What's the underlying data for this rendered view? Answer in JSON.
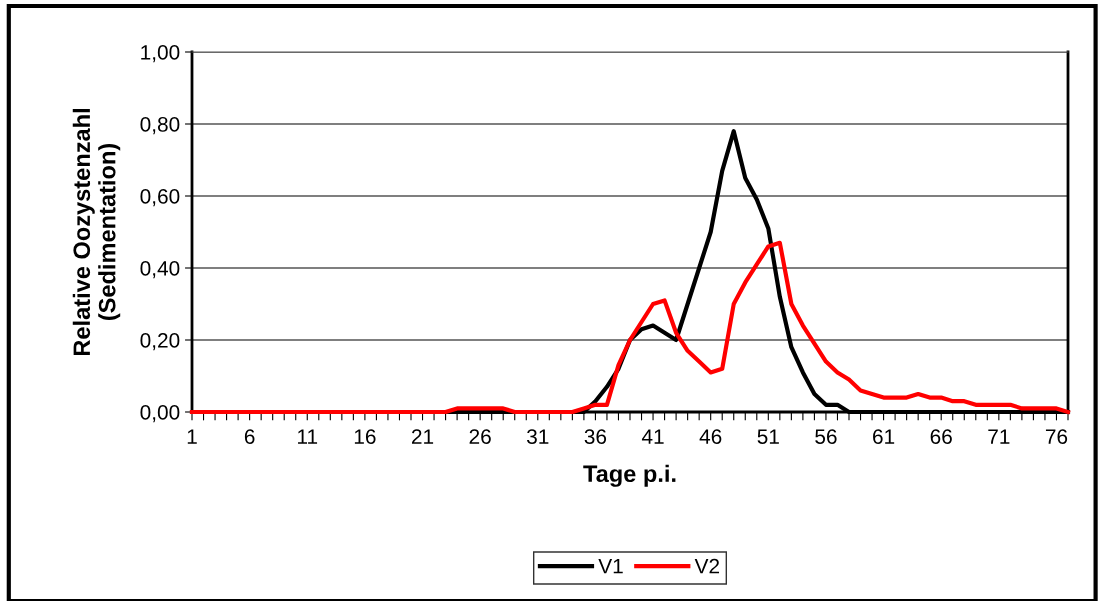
{
  "chart_data": {
    "type": "line",
    "xlabel": "Tage p.i.",
    "ylabel": "Relative Oozystenzahl\n(Sedimentation)",
    "categories": [
      "1",
      null,
      null,
      null,
      null,
      "6",
      null,
      null,
      null,
      null,
      "11",
      null,
      null,
      null,
      null,
      "16",
      null,
      null,
      null,
      null,
      "21",
      null,
      null,
      null,
      null,
      "26",
      null,
      null,
      null,
      null,
      "31",
      null,
      null,
      null,
      null,
      "36",
      null,
      null,
      null,
      null,
      "41",
      null,
      null,
      null,
      null,
      "46",
      null,
      null,
      null,
      null,
      "51",
      null,
      null,
      null,
      null,
      "56",
      null,
      null,
      null,
      null,
      "61",
      null,
      null,
      null,
      null,
      "66",
      null,
      null,
      null,
      null,
      "71",
      null,
      null,
      null,
      null,
      "76",
      null
    ],
    "series": [
      {
        "name": "V1",
        "color": "#000000",
        "values": [
          0,
          0,
          0,
          0,
          0,
          0,
          0,
          0,
          0,
          0,
          0,
          0,
          0,
          0,
          0,
          0,
          0,
          0,
          0,
          0,
          0,
          0,
          0,
          0,
          0,
          0,
          0,
          0,
          0,
          0,
          0,
          0,
          0,
          0,
          0.0,
          0.03,
          0.07,
          0.12,
          0.2,
          0.23,
          0.24,
          0.22,
          0.2,
          0.3,
          0.4,
          0.5,
          0.67,
          0.78,
          0.65,
          0.59,
          0.51,
          0.32,
          0.18,
          0.11,
          0.05,
          0.02,
          0.02,
          0,
          0,
          0,
          0,
          0,
          0,
          0,
          0,
          0,
          0,
          0,
          0,
          0,
          0,
          0,
          0,
          0,
          0,
          0,
          0
        ]
      },
      {
        "name": "V2",
        "color": "#ff0000",
        "values": [
          0,
          0,
          0,
          0,
          0,
          0,
          0,
          0,
          0,
          0,
          0,
          0,
          0,
          0,
          0,
          0,
          0,
          0,
          0,
          0,
          0,
          0,
          0,
          0.01,
          0.01,
          0.01,
          0.01,
          0.01,
          0,
          0,
          0,
          0,
          0,
          0.0,
          0.01,
          0.02,
          0.02,
          0.13,
          0.2,
          0.25,
          0.3,
          0.31,
          0.22,
          0.17,
          0.14,
          0.11,
          0.12,
          0.3,
          0.36,
          0.41,
          0.46,
          0.47,
          0.3,
          0.24,
          0.19,
          0.14,
          0.11,
          0.09,
          0.06,
          0.05,
          0.04,
          0.04,
          0.04,
          0.05,
          0.04,
          0.04,
          0.03,
          0.03,
          0.02,
          0.02,
          0.02,
          0.02,
          0.01,
          0.01,
          0.01,
          0.01,
          0
        ]
      }
    ],
    "ylim": [
      0,
      1
    ],
    "yticks": [
      {
        "value": 0,
        "label": "0,00"
      },
      {
        "value": 0.2,
        "label": "0,20"
      },
      {
        "value": 0.4,
        "label": "0,40"
      },
      {
        "value": 0.6,
        "label": "0,60"
      },
      {
        "value": 0.8,
        "label": "0,80"
      },
      {
        "value": 1,
        "label": "1,00"
      }
    ],
    "grid": "y",
    "legend": "bottom",
    "marker": "none",
    "line_style": "solid"
  }
}
